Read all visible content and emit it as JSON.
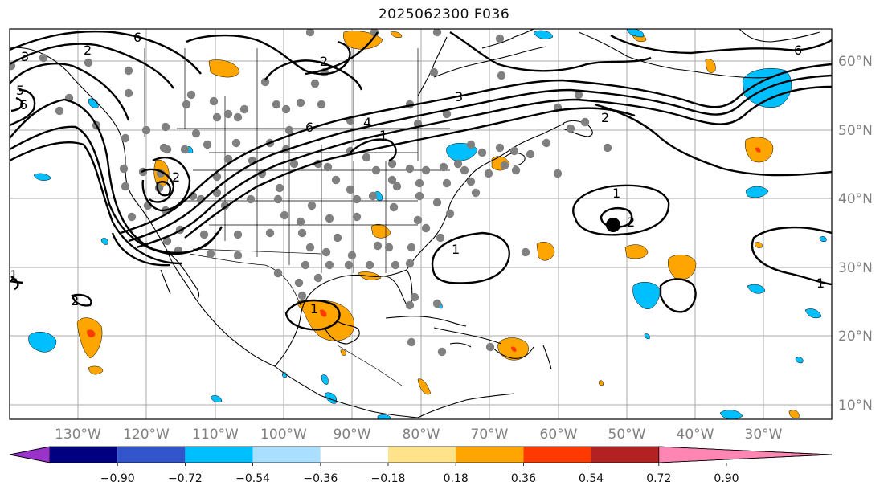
{
  "title": "2025062300 F036",
  "lon_labels": [
    "130°W",
    "120°W",
    "110°W",
    "100°W",
    "90°W",
    "80°W",
    "70°W",
    "60°W",
    "50°W",
    "40°W",
    "30°W"
  ],
  "lat_labels": [
    "60°N",
    "50°N",
    "40°N",
    "30°N",
    "20°N",
    "10°N"
  ],
  "contour_labels": [
    "6",
    "3",
    "2",
    "5",
    "6",
    "2",
    "2",
    "6",
    "4",
    "3",
    "1",
    "2",
    "1",
    "1",
    "1",
    "2",
    "1",
    "6",
    "1",
    "2"
  ],
  "colorbar": {
    "ticks": [
      "−0.90",
      "−0.72",
      "−0.54",
      "−0.36",
      "−0.18",
      "0.18",
      "0.36",
      "0.54",
      "0.72",
      "0.90"
    ],
    "colors": [
      "#9933cc",
      "#000080",
      "#3355cc",
      "#00bfff",
      "#aadfff",
      "#ffffff",
      "#ffe38a",
      "#ffa500",
      "#ff3a00",
      "#b22222",
      "#ff85b3"
    ]
  },
  "colors": {
    "positive": "#ffa500",
    "positive_strong": "#ff3a00",
    "negative": "#00bfff",
    "station": "#808080"
  }
}
